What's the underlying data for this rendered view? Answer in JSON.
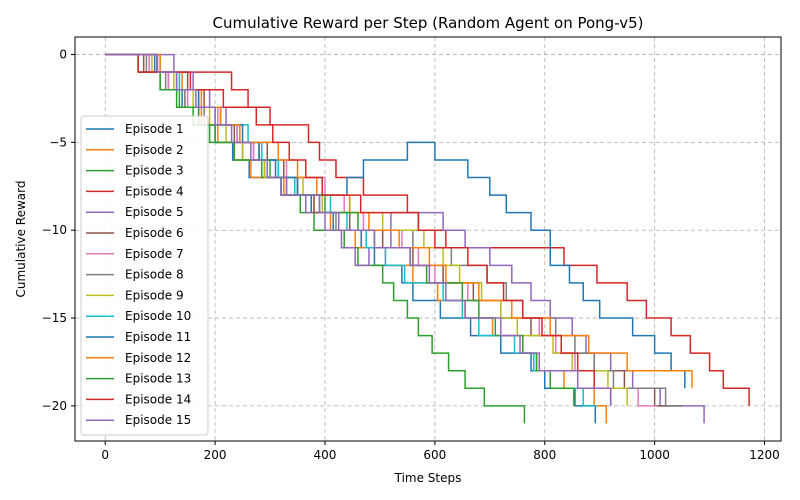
{
  "chart_data": {
    "type": "line",
    "title": "Cumulative Reward per Step (Random Agent on Pong-v5)",
    "xlabel": "Time Steps",
    "ylabel": "Cumulative Reward",
    "xlim": [
      -55,
      1230
    ],
    "ylim": [
      -22,
      1
    ],
    "xticks": [
      0,
      200,
      400,
      600,
      800,
      1000,
      1200
    ],
    "xtick_labels": [
      "0",
      "200",
      "400",
      "600",
      "800",
      "1000",
      "1200"
    ],
    "yticks": [
      0,
      -5,
      -10,
      -15,
      -20
    ],
    "ytick_labels": [
      "0",
      "−5",
      "−10",
      "−15",
      "−20"
    ],
    "grid": true,
    "legend_position": "center-left",
    "series": [
      {
        "name": "Episode 1",
        "color": "#1f77b4",
        "x": [
          0,
          94,
          115,
          140,
          170,
          200,
          232,
          262,
          290,
          320,
          345,
          375,
          395,
          415,
          440,
          466,
          490,
          515,
          540,
          560,
          585,
          610,
          640,
          665,
          690,
          720,
          745,
          775,
          800,
          825,
          855,
          880,
          892
        ],
        "y": [
          0,
          -1,
          -2,
          -3,
          -4,
          -5,
          -6,
          -7,
          -7,
          -8,
          -8,
          -9,
          -9,
          -10,
          -10,
          -11,
          -12,
          -12,
          -13,
          -14,
          -14,
          -15,
          -15,
          -16,
          -16,
          -17,
          -17,
          -18,
          -19,
          -19,
          -20,
          -20,
          -21
        ]
      },
      {
        "name": "Episode 2",
        "color": "#ff7f0e",
        "x": [
          0,
          95,
          115,
          145,
          175,
          205,
          235,
          265,
          295,
          325,
          355,
          380,
          410,
          430,
          455,
          480,
          510,
          535,
          560,
          585,
          605,
          635,
          655,
          680,
          705,
          735,
          760,
          785,
          810,
          835,
          860,
          890,
          912
        ],
        "y": [
          0,
          -1,
          -2,
          -3,
          -4,
          -5,
          -6,
          -7,
          -7,
          -8,
          -8,
          -9,
          -10,
          -10,
          -11,
          -11,
          -12,
          -12,
          -13,
          -13,
          -14,
          -14,
          -15,
          -15,
          -16,
          -16,
          -17,
          -18,
          -18,
          -19,
          -19,
          -20,
          -21
        ]
      },
      {
        "name": "Episode 3",
        "color": "#2ca02c",
        "x": [
          0,
          60,
          100,
          130,
          160,
          190,
          225,
          250,
          285,
          320,
          355,
          380,
          410,
          435,
          460,
          480,
          505,
          525,
          550,
          570,
          595,
          625,
          655,
          690,
          730,
          763
        ],
        "y": [
          0,
          -1,
          -2,
          -3,
          -4,
          -5,
          -5,
          -6,
          -7,
          -8,
          -9,
          -10,
          -10,
          -11,
          -12,
          -12,
          -13,
          -14,
          -15,
          -16,
          -17,
          -18,
          -19,
          -20,
          -20,
          -21
        ]
      },
      {
        "name": "Episode 4",
        "color": "#d62728",
        "x": [
          0,
          60,
          90,
          130,
          170,
          230,
          260,
          300,
          340,
          370,
          390,
          420,
          440,
          470,
          500,
          550,
          570,
          595,
          620,
          650,
          700,
          720,
          760,
          800,
          835,
          860,
          895,
          950,
          985,
          1010,
          1030,
          1065,
          1100,
          1125,
          1150,
          1172
        ],
        "y": [
          0,
          -1,
          -1,
          -1,
          -1,
          -2,
          -3,
          -4,
          -4,
          -5,
          -6,
          -7,
          -7,
          -8,
          -8,
          -9,
          -10,
          -10,
          -11,
          -11,
          -11,
          -11,
          -11,
          -11,
          -12,
          -12,
          -13,
          -14,
          -15,
          -15,
          -16,
          -17,
          -18,
          -19,
          -19,
          -20
        ]
      },
      {
        "name": "Episode 5",
        "color": "#9467bd",
        "x": [
          0,
          125,
          160,
          190,
          220,
          240,
          270,
          290,
          320,
          345,
          365,
          400,
          430,
          455,
          480,
          520,
          550,
          600,
          615,
          655,
          700,
          740,
          775,
          810,
          850,
          875,
          920,
          960,
          1010,
          1050,
          1090
        ],
        "y": [
          0,
          -1,
          -2,
          -3,
          -4,
          -5,
          -6,
          -7,
          -8,
          -8,
          -9,
          -10,
          -11,
          -12,
          -11,
          -9,
          -9,
          -9,
          -10,
          -11,
          -12,
          -13,
          -14,
          -15,
          -16,
          -17,
          -18,
          -19,
          -20,
          -20,
          -21
        ]
      },
      {
        "name": "Episode 6",
        "color": "#8c564b",
        "x": [
          0,
          70,
          110,
          150,
          180,
          210,
          235,
          265,
          295,
          325,
          350,
          380,
          415,
          445,
          475,
          505,
          530,
          560,
          590,
          615,
          640,
          670,
          695,
          720,
          750,
          775,
          800,
          830,
          860,
          890,
          915,
          945,
          970,
          1000,
          1030,
          1050
        ],
        "y": [
          0,
          -1,
          -1,
          -2,
          -3,
          -4,
          -5,
          -5,
          -6,
          -7,
          -8,
          -9,
          -9,
          -10,
          -10,
          -11,
          -11,
          -12,
          -12,
          -13,
          -13,
          -14,
          -14,
          -15,
          -15,
          -16,
          -16,
          -17,
          -17,
          -18,
          -18,
          -19,
          -19,
          -20,
          -20,
          -20
        ]
      },
      {
        "name": "Episode 7",
        "color": "#e377c2",
        "x": [
          0,
          80,
          115,
          150,
          180,
          205,
          240,
          270,
          300,
          330,
          365,
          400,
          435,
          470,
          505,
          540,
          570,
          600,
          630,
          660,
          690,
          725,
          760,
          790,
          820,
          855,
          890,
          930,
          970,
          1005
        ],
        "y": [
          0,
          -1,
          -2,
          -3,
          -3,
          -4,
          -5,
          -6,
          -6,
          -7,
          -7,
          -8,
          -9,
          -10,
          -10,
          -11,
          -12,
          -13,
          -13,
          -14,
          -14,
          -14,
          -15,
          -16,
          -17,
          -18,
          -19,
          -19,
          -20,
          -20
        ]
      },
      {
        "name": "Episode 8",
        "color": "#7f7f7f",
        "x": [
          0,
          75,
          110,
          145,
          180,
          215,
          245,
          280,
          315,
          350,
          390,
          420,
          460,
          490,
          530,
          560,
          590,
          630,
          660,
          695,
          730,
          760,
          790,
          820,
          855,
          890,
          925,
          960,
          990,
          1020,
          1050
        ],
        "y": [
          0,
          -1,
          -2,
          -3,
          -4,
          -4,
          -5,
          -6,
          -7,
          -8,
          -9,
          -10,
          -10,
          -10,
          -10,
          -11,
          -11,
          -12,
          -12,
          -13,
          -14,
          -15,
          -15,
          -16,
          -17,
          -18,
          -19,
          -19,
          -19,
          -20,
          -20
        ]
      },
      {
        "name": "Episode 9",
        "color": "#bcbd22",
        "x": [
          0,
          85,
          125,
          160,
          190,
          220,
          250,
          290,
          325,
          360,
          395,
          430,
          470,
          505,
          545,
          580,
          615,
          645,
          685,
          720,
          750,
          780,
          815,
          850,
          880,
          915,
          950
        ],
        "y": [
          0,
          -1,
          -2,
          -3,
          -4,
          -5,
          -6,
          -7,
          -7,
          -8,
          -9,
          -9,
          -9,
          -10,
          -10,
          -11,
          -12,
          -13,
          -14,
          -15,
          -16,
          -16,
          -17,
          -18,
          -18,
          -19,
          -20
        ]
      },
      {
        "name": "Episode 10",
        "color": "#17becf",
        "x": [
          0,
          100,
          135,
          170,
          200,
          230,
          260,
          285,
          315,
          345,
          380,
          410,
          440,
          475,
          510,
          545,
          580,
          615,
          650,
          680,
          715,
          745,
          780,
          810,
          840,
          870,
          895
        ],
        "y": [
          0,
          -1,
          -2,
          -3,
          -4,
          -4,
          -5,
          -6,
          -7,
          -8,
          -8,
          -9,
          -10,
          -11,
          -12,
          -13,
          -13,
          -14,
          -15,
          -16,
          -16,
          -17,
          -18,
          -19,
          -19,
          -20,
          -20
        ]
      },
      {
        "name": "Episode 11",
        "color": "#1f77b4",
        "x": [
          0,
          90,
          130,
          170,
          210,
          250,
          280,
          310,
          350,
          385,
          415,
          440,
          470,
          500,
          535,
          550,
          600,
          630,
          660,
          700,
          730,
          775,
          810,
          845,
          870,
          900,
          930,
          960,
          1000,
          1030,
          1055
        ],
        "y": [
          0,
          -1,
          -2,
          -3,
          -4,
          -5,
          -6,
          -7,
          -8,
          -8,
          -8,
          -7,
          -6,
          -6,
          -6,
          -5,
          -6,
          -6,
          -7,
          -8,
          -9,
          -10,
          -12,
          -13,
          -14,
          -15,
          -15,
          -16,
          -17,
          -18,
          -19
        ]
      },
      {
        "name": "Episode 12",
        "color": "#ff7f0e",
        "x": [
          0,
          100,
          140,
          175,
          210,
          245,
          280,
          315,
          350,
          385,
          415,
          445,
          480,
          510,
          535,
          560,
          590,
          620,
          650,
          680,
          710,
          740,
          775,
          810,
          845,
          880,
          915,
          950,
          985,
          1020,
          1050,
          1068
        ],
        "y": [
          0,
          -1,
          -2,
          -3,
          -4,
          -5,
          -5,
          -6,
          -7,
          -8,
          -8,
          -9,
          -10,
          -10,
          -11,
          -11,
          -12,
          -13,
          -13,
          -14,
          -14,
          -15,
          -15,
          -16,
          -16,
          -17,
          -17,
          -18,
          -18,
          -18,
          -18,
          -19
        ]
      },
      {
        "name": "Episode 13",
        "color": "#2ca02c",
        "x": [
          0,
          60,
          100,
          135,
          170,
          200,
          235,
          265,
          300,
          330,
          365,
          400,
          430,
          460,
          490,
          520,
          555,
          585,
          620,
          650,
          680,
          710,
          735,
          760,
          785,
          810,
          835,
          853
        ],
        "y": [
          0,
          -1,
          -2,
          -3,
          -4,
          -5,
          -6,
          -6,
          -7,
          -8,
          -8,
          -9,
          -9,
          -10,
          -11,
          -11,
          -12,
          -13,
          -13,
          -14,
          -15,
          -16,
          -16,
          -17,
          -18,
          -19,
          -19,
          -20
        ]
      },
      {
        "name": "Episode 14",
        "color": "#d62728",
        "x": [
          0,
          60,
          95,
          125,
          155,
          185,
          215,
          245,
          275,
          305,
          335,
          365,
          395,
          430,
          465,
          500,
          535,
          570,
          600,
          630,
          660,
          695,
          725,
          760,
          795,
          830,
          860,
          890,
          920
        ],
        "y": [
          0,
          -1,
          -1,
          -1,
          -2,
          -2,
          -3,
          -3,
          -4,
          -5,
          -6,
          -7,
          -8,
          -8,
          -9,
          -9,
          -9,
          -10,
          -11,
          -11,
          -12,
          -13,
          -14,
          -15,
          -16,
          -17,
          -18,
          -19,
          -20
        ]
      },
      {
        "name": "Episode 15",
        "color": "#9467bd",
        "x": [
          0,
          95,
          130,
          165,
          200,
          230,
          265,
          295,
          330,
          360,
          390,
          425,
          455,
          490,
          520,
          555,
          590,
          620,
          655,
          690,
          720,
          755,
          790,
          825,
          860,
          890,
          920
        ],
        "y": [
          0,
          -1,
          -2,
          -3,
          -4,
          -5,
          -6,
          -7,
          -8,
          -8,
          -9,
          -10,
          -10,
          -11,
          -11,
          -12,
          -13,
          -14,
          -15,
          -15,
          -16,
          -17,
          -18,
          -18,
          -19,
          -19,
          -20
        ]
      }
    ]
  }
}
